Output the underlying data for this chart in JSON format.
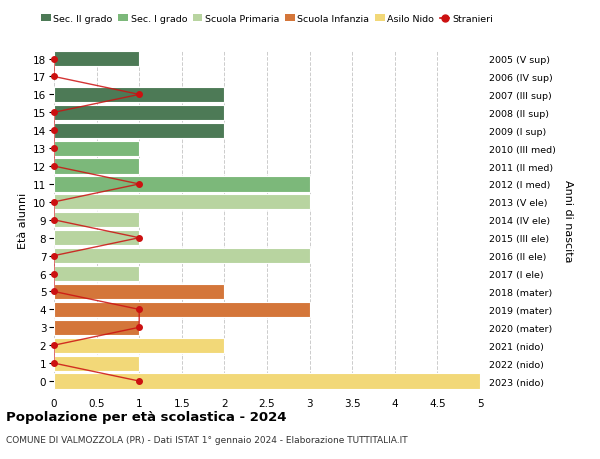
{
  "ages": [
    18,
    17,
    16,
    15,
    14,
    13,
    12,
    11,
    10,
    9,
    8,
    7,
    6,
    5,
    4,
    3,
    2,
    1,
    0
  ],
  "right_labels": [
    "2005 (V sup)",
    "2006 (IV sup)",
    "2007 (III sup)",
    "2008 (II sup)",
    "2009 (I sup)",
    "2010 (III med)",
    "2011 (II med)",
    "2012 (I med)",
    "2013 (V ele)",
    "2014 (IV ele)",
    "2015 (III ele)",
    "2016 (II ele)",
    "2017 (I ele)",
    "2018 (mater)",
    "2019 (mater)",
    "2020 (mater)",
    "2021 (nido)",
    "2022 (nido)",
    "2023 (nido)"
  ],
  "bar_values": [
    1,
    0,
    2,
    2,
    2,
    1,
    1,
    3,
    3,
    1,
    1,
    3,
    1,
    2,
    3,
    1,
    2,
    1,
    5
  ],
  "bar_colors": [
    "#4d7a56",
    "#4d7a56",
    "#4d7a56",
    "#4d7a56",
    "#4d7a56",
    "#7cb87a",
    "#7cb87a",
    "#7cb87a",
    "#b8d4a0",
    "#b8d4a0",
    "#b8d4a0",
    "#b8d4a0",
    "#b8d4a0",
    "#d4763a",
    "#d4763a",
    "#d4763a",
    "#f2d878",
    "#f2d878",
    "#f2d878"
  ],
  "stranieri_x": [
    0,
    0,
    1,
    0,
    0,
    0,
    0,
    1,
    0,
    0,
    1,
    0,
    0,
    0,
    1,
    1,
    0,
    0,
    1
  ],
  "legend_labels": [
    "Sec. II grado",
    "Sec. I grado",
    "Scuola Primaria",
    "Scuola Infanzia",
    "Asilo Nido",
    "Stranieri"
  ],
  "legend_colors": [
    "#4d7a56",
    "#7cb87a",
    "#b8d4a0",
    "#d4763a",
    "#f2d878",
    "#cc1111"
  ],
  "ylabel_left": "Età alunni",
  "ylabel_right": "Anni di nascita",
  "title": "Popolazione per età scolastica - 2024",
  "subtitle": "COMUNE DI VALMOZZOLA (PR) - Dati ISTAT 1° gennaio 2024 - Elaborazione TUTTITALIA.IT",
  "xlim": [
    0,
    5.0
  ],
  "xticks": [
    0,
    0.5,
    1.0,
    1.5,
    2.0,
    2.5,
    3.0,
    3.5,
    4.0,
    4.5,
    5.0
  ],
  "bg_color": "#ffffff",
  "grid_color": "#cccccc",
  "bar_height": 0.85,
  "stranieri_color": "#cc1111"
}
